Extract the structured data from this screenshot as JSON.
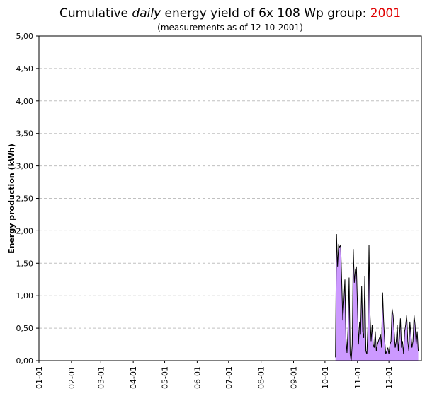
{
  "chart_data": {
    "type": "area",
    "title_prefix": "Cumulative ",
    "title_emphasis": "daily",
    "title_mid": "  energy yield of 6x 108 Wp group: ",
    "title_year": "2001",
    "subtitle": "(measurements as of 12-10-2001)",
    "xlabel": "",
    "ylabel": "Energy production (kWh)",
    "ylim": [
      0,
      5
    ],
    "y_ticks": [
      "0,00",
      "0,50",
      "1,00",
      "1,50",
      "2,00",
      "2,50",
      "3,00",
      "3,50",
      "4,00",
      "4,50",
      "5,00"
    ],
    "x_ticks": [
      "01-01",
      "02-01",
      "03-01",
      "04-01",
      "05-01",
      "06-01",
      "07-01",
      "08-01",
      "09-01",
      "10-01",
      "11-01",
      "12-01"
    ],
    "grid": "horizontal-dashed",
    "colors": {
      "fill": "#cc99ff",
      "line": "#000000",
      "grid": "#c0c0c0",
      "title_year": "#e00000"
    },
    "series": [
      {
        "start_day": 283,
        "values": [
          0.05,
          1.95,
          1.45,
          1.78,
          1.75,
          1.78,
          1.2,
          0.62,
          0.9,
          1.25,
          0.35,
          0.12,
          0.5,
          1.28,
          0.1,
          0,
          0.25,
          1.72,
          1.2,
          1.4,
          1.45,
          0.85,
          0.25,
          0.6,
          0.4,
          1.15,
          0.45,
          0.35,
          1.3,
          0.15,
          0.1,
          0.55,
          1.78,
          0.7,
          0.3,
          0.55,
          0.25,
          0.2,
          0.45,
          0.15,
          0.25,
          0.3,
          0.35,
          0.4,
          0.2,
          1.05,
          0.6,
          0.3,
          0.1,
          0.15,
          0.2,
          0.1,
          0.25,
          0.3,
          0.8,
          0.7,
          0.45,
          0.2,
          0.3,
          0.55,
          0.15,
          0.35,
          0.65,
          0.2,
          0.3,
          0.1,
          0.45,
          0.55,
          0.7,
          0.3,
          0.15,
          0.6,
          0.4,
          0.2,
          0.3,
          0.7,
          0.55,
          0.25,
          0.45,
          0.15
        ]
      }
    ]
  }
}
